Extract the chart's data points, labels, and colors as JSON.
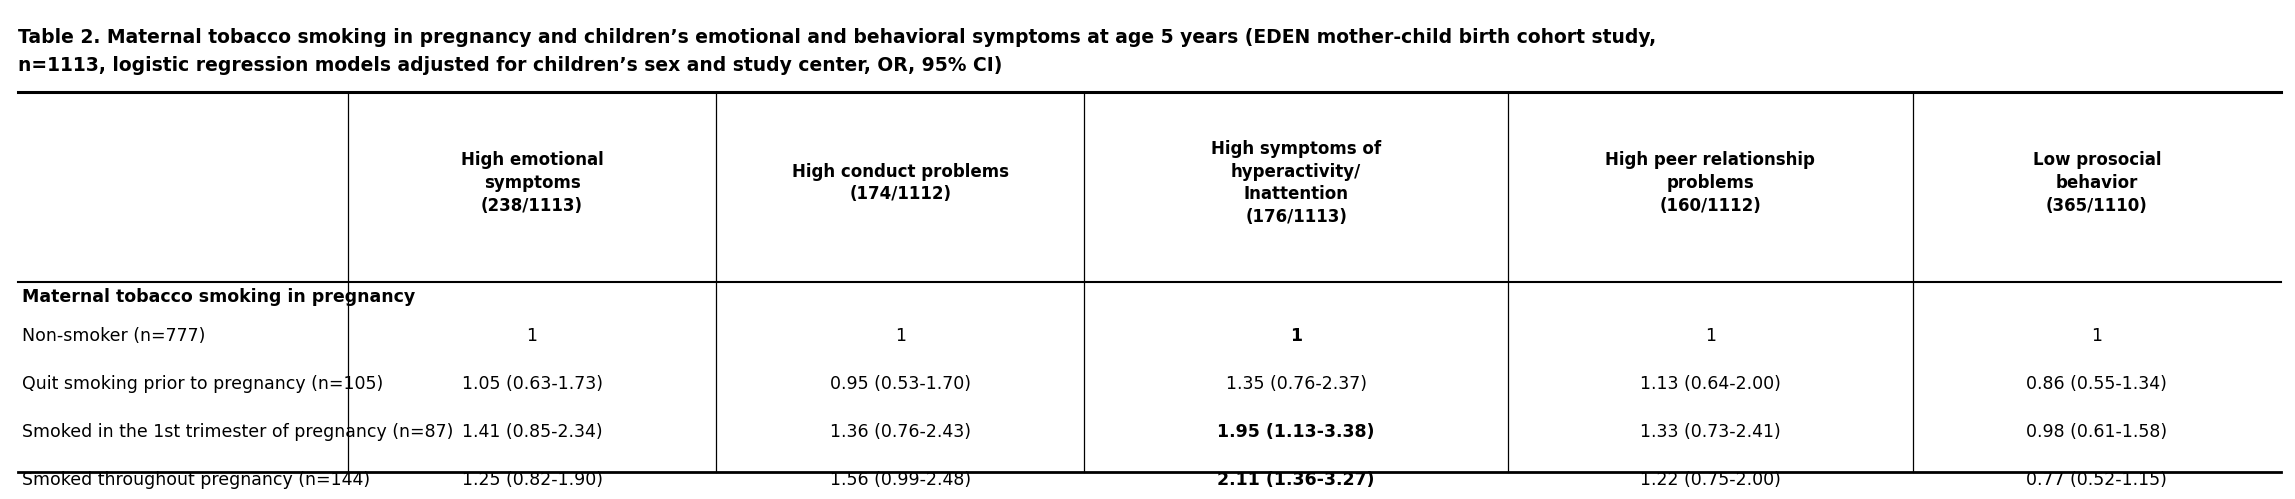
{
  "title_line1": "Table 2. Maternal tobacco smoking in pregnancy and children’s emotional and behavioral symptoms at age 5 years (EDEN mother-child birth cohort study,",
  "title_line2": "n=1113, logistic regression models adjusted for children’s sex and study center, OR, 95% CI)",
  "col_headers": [
    "High emotional\nsymptoms\n(238/1113)",
    "High conduct problems\n(174/1112)",
    "High symptoms of\nhyperactivity/\nInattention\n(176/1113)",
    "High peer relationship\nproblems\n(160/1112)",
    "Low prosocial\nbehavior\n(365/1110)"
  ],
  "row_group_label": "Maternal tobacco smoking in pregnancy",
  "rows": [
    {
      "label": "Non-smoker (n=777)",
      "values": [
        "1",
        "1",
        "1",
        "1",
        "1"
      ],
      "bold": [
        false,
        false,
        true,
        false,
        false
      ]
    },
    {
      "label": "Quit smoking prior to pregnancy (n=105)",
      "values": [
        "1.05 (0.63-1.73)",
        "0.95 (0.53-1.70)",
        "1.35 (0.76-2.37)",
        "1.13 (0.64-2.00)",
        "0.86 (0.55-1.34)"
      ],
      "bold": [
        false,
        false,
        false,
        false,
        false
      ]
    },
    {
      "label": "Smoked in the 1st trimester of pregnancy (n=87)",
      "values": [
        "1.41 (0.85-2.34)",
        "1.36 (0.76-2.43)",
        "1.95 (1.13-3.38)",
        "1.33 (0.73-2.41)",
        "0.98 (0.61-1.58)"
      ],
      "bold": [
        false,
        false,
        true,
        false,
        false
      ]
    },
    {
      "label": "Smoked throughout pregnancy (n=144)",
      "values": [
        "1.25 (0.82-1.90)",
        "1.56 (0.99-2.48)",
        "2.11 (1.36-3.27)",
        "1.22 (0.75-2.00)",
        "0.77 (0.52-1.15)"
      ],
      "bold": [
        false,
        false,
        true,
        false,
        false
      ]
    }
  ],
  "background_color": "#ffffff",
  "title_fontsize": 13.5,
  "header_fontsize": 12.0,
  "body_fontsize": 12.5,
  "group_fontsize": 12.5
}
